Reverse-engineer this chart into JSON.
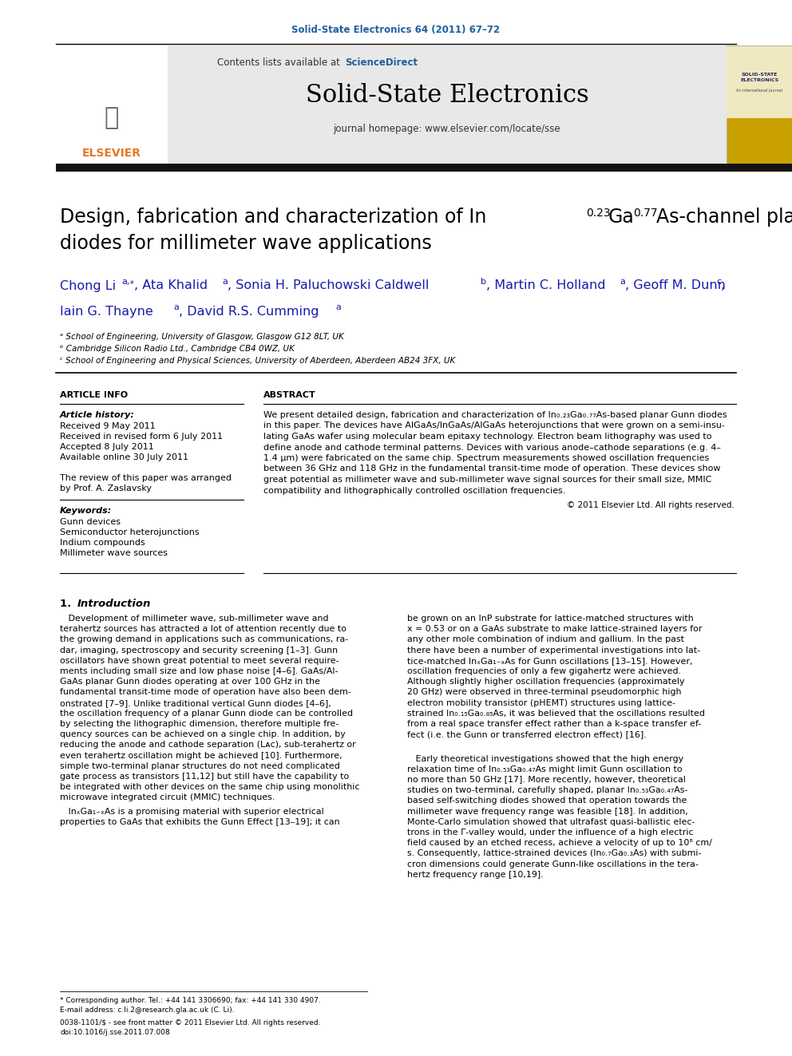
{
  "journal_ref": "Solid-State Electronics 64 (2011) 67–72",
  "journal_name": "Solid-State Electronics",
  "journal_homepage": "journal homepage: www.elsevier.com/locate/sse",
  "contents_text": "Contents lists available at ",
  "sciencedirect_text": "ScienceDirect",
  "title_line1": "Design, fabrication and characterization of In",
  "title_sub1": "0.23",
  "title_mid1": "Ga",
  "title_sub2": "0.77",
  "title_mid2": "As-channel planar Gunn",
  "title_line2": "diodes for millimeter wave applications",
  "affil_a": "ᵃ School of Engineering, University of Glasgow, Glasgow G12 8LT, UK",
  "affil_b": "ᵇ Cambridge Silicon Radio Ltd., Cambridge CB4 0WZ, UK",
  "affil_c": "ᶜ School of Engineering and Physical Sciences, University of Aberdeen, Aberdeen AB24 3FX, UK",
  "article_info_title": "ARTICLE INFO",
  "abstract_title": "ABSTRACT",
  "article_history_label": "Article history:",
  "received1": "Received 9 May 2011",
  "received2": "Received in revised form 6 July 2011",
  "accepted": "Accepted 8 July 2011",
  "available": "Available online 30 July 2011",
  "review_line1": "The review of this paper was arranged",
  "review_line2": "by Prof. A. Zaslavsky",
  "keywords_label": "Keywords:",
  "keyword1": "Gunn devices",
  "keyword2": "Semiconductor heterojunctions",
  "keyword3": "Indium compounds",
  "keyword4": "Millimeter wave sources",
  "copyright": "© 2011 Elsevier Ltd. All rights reserved.",
  "footnote1": "* Corresponding author. Tel.: +44 141 3306690; fax: +44 141 330 4907.",
  "footnote2": "E-mail address: c.li.2@research.gla.ac.uk (C. Li).",
  "footnote3": "0038-1101/$ - see front matter © 2011 Elsevier Ltd. All rights reserved.",
  "footnote4": "doi:10.1016/j.sse.2011.07.008",
  "bg_color": "#ffffff",
  "header_bg": "#e8e8e8",
  "journal_ref_color": "#2060a0",
  "sciencedirect_color": "#2060a0",
  "thick_bar_color": "#111111",
  "elsevier_orange": "#e87722",
  "authors_color": "#1a1aaa"
}
